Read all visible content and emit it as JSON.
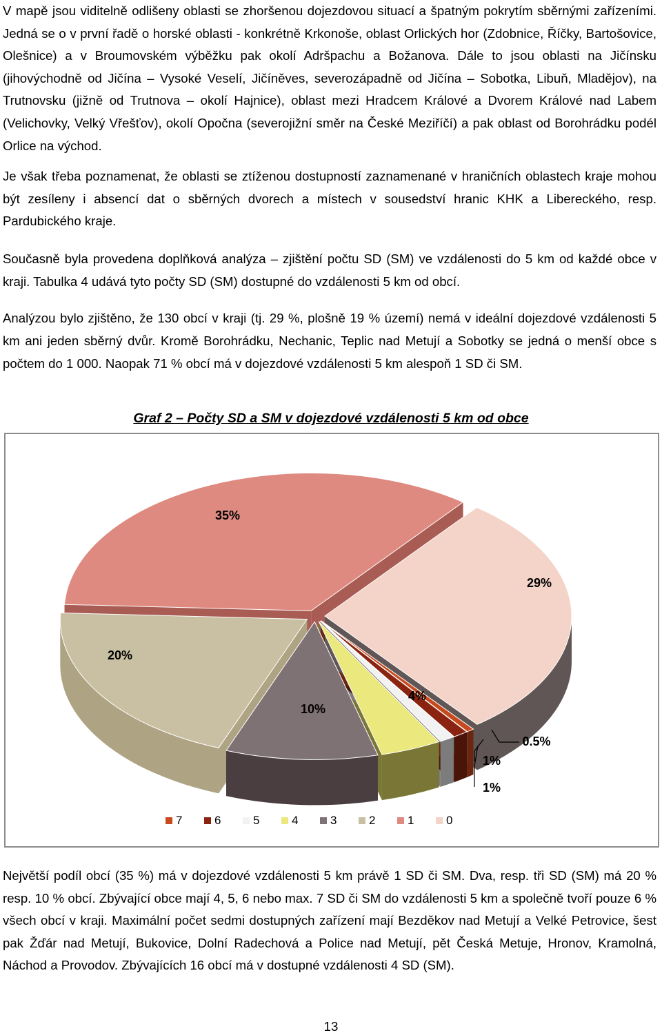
{
  "paragraphs": {
    "p1": "V mapě jsou viditelně odlišeny oblasti se zhoršenou dojezdovou situací a špatným pokrytím sběrnými zařízeními. Jedná se o v první řadě o horské oblasti - konkrétně Krkonoše, oblast Orlických hor (Zdobnice, Říčky, Bartošovice, Olešnice) a v Broumovském výběžku pak okolí Adršpachu a Božanova. Dále to jsou oblasti na Jičínsku (jihovýchodně od Jičína – Vysoké Veselí, Jičíněves, severozápadně od Jičína – Sobotka, Libuň, Mladějov), na Trutnovsku (jižně od Trutnova – okolí Hajnice), oblast mezi Hradcem Králové a Dvorem Králové nad Labem (Velichovky, Velký Vřešťov), okolí Opočna (severojižní směr na České Meziříčí) a pak oblast od Borohrádku podél Orlice na východ.",
    "p2": "Je však třeba poznamenat, že oblasti se ztíženou dostupností zaznamenané v hraničních oblastech kraje mohou být zesíleny i absencí dat o sběrných dvorech a místech v sousedství hranic KHK a Libereckého, resp. Pardubického kraje.",
    "p3": "Současně byla provedena doplňková analýza – zjištění počtu SD (SM) ve vzdálenosti do 5 km od každé obce v kraji. Tabulka 4 udává tyto počty SD (SM) dostupné do vzdálenosti 5 km od obcí.",
    "p4": "Analýzou bylo zjištěno, že 130 obcí v kraji (tj. 29 %, plošně 19 % území) nemá v ideální dojezdové vzdálenosti 5 km ani jeden sběrný dvůr. Kromě Borohrádku, Nechanic, Teplic nad Metují a Sobotky se jedná o menší obce s počtem do 1 000. Naopak 71 % obcí má v dojezdové vzdálenosti 5 km alespoň 1 SD či SM.",
    "p5": "Největší podíl obcí (35 %) má v dojezdové vzdálenosti 5 km právě 1 SD či SM. Dva, resp. tři SD (SM) má 20 % resp. 10 % obcí. Zbývající obce mají 4, 5, 6 nebo max. 7 SD či SM do vzdálenosti 5 km a společně tvoří pouze 6 % všech obcí v kraji. Maximální počet sedmi dostupných zařízení mají Bezděkov nad Metují a Velké Petrovice, šest pak Žďár nad Metují, Bukovice, Dolní Radechová a Police nad Metují, pět Česká Metuje, Hronov, Kramolná, Náchod a Provodov. Zbývajících 16 obcí má v dostupné vzdálenosti 4 SD (SM)."
  },
  "page_number": "13",
  "chart_data": {
    "type": "pie",
    "title": "Graf 2 – Počty SD a SM v dojezdové vzdálenosti 5 km od obce",
    "style": "3d-exploded",
    "legend_position": "bottom",
    "slices": [
      {
        "category": "0",
        "value": 29,
        "label": "29%",
        "color": "#f4d3c8",
        "side": "#5f5655"
      },
      {
        "category": "7",
        "value": 0.5,
        "label": "0.5%",
        "color": "#c74a1f",
        "side": "#6b2610"
      },
      {
        "category": "6",
        "value": 1,
        "label": "1%",
        "color": "#8a2410",
        "side": "#4a1408"
      },
      {
        "category": "5",
        "value": 1,
        "label": "1%",
        "color": "#f2f2f2",
        "side": "#7c7c7c"
      },
      {
        "category": "4",
        "value": 4,
        "label": "4%",
        "color": "#ebe87d",
        "side": "#7a7636"
      },
      {
        "category": "3",
        "value": 10,
        "label": "10%",
        "color": "#7f7274",
        "side": "#4a3e40"
      },
      {
        "category": "2",
        "value": 20,
        "label": "20%",
        "color": "#c9c0a3",
        "side": "#aea383"
      },
      {
        "category": "1",
        "value": 35,
        "label": "35%",
        "color": "#df8a80",
        "side": "#a95c54"
      }
    ],
    "legend_order": [
      "7",
      "6",
      "5",
      "4",
      "3",
      "2",
      "1",
      "0"
    ]
  }
}
